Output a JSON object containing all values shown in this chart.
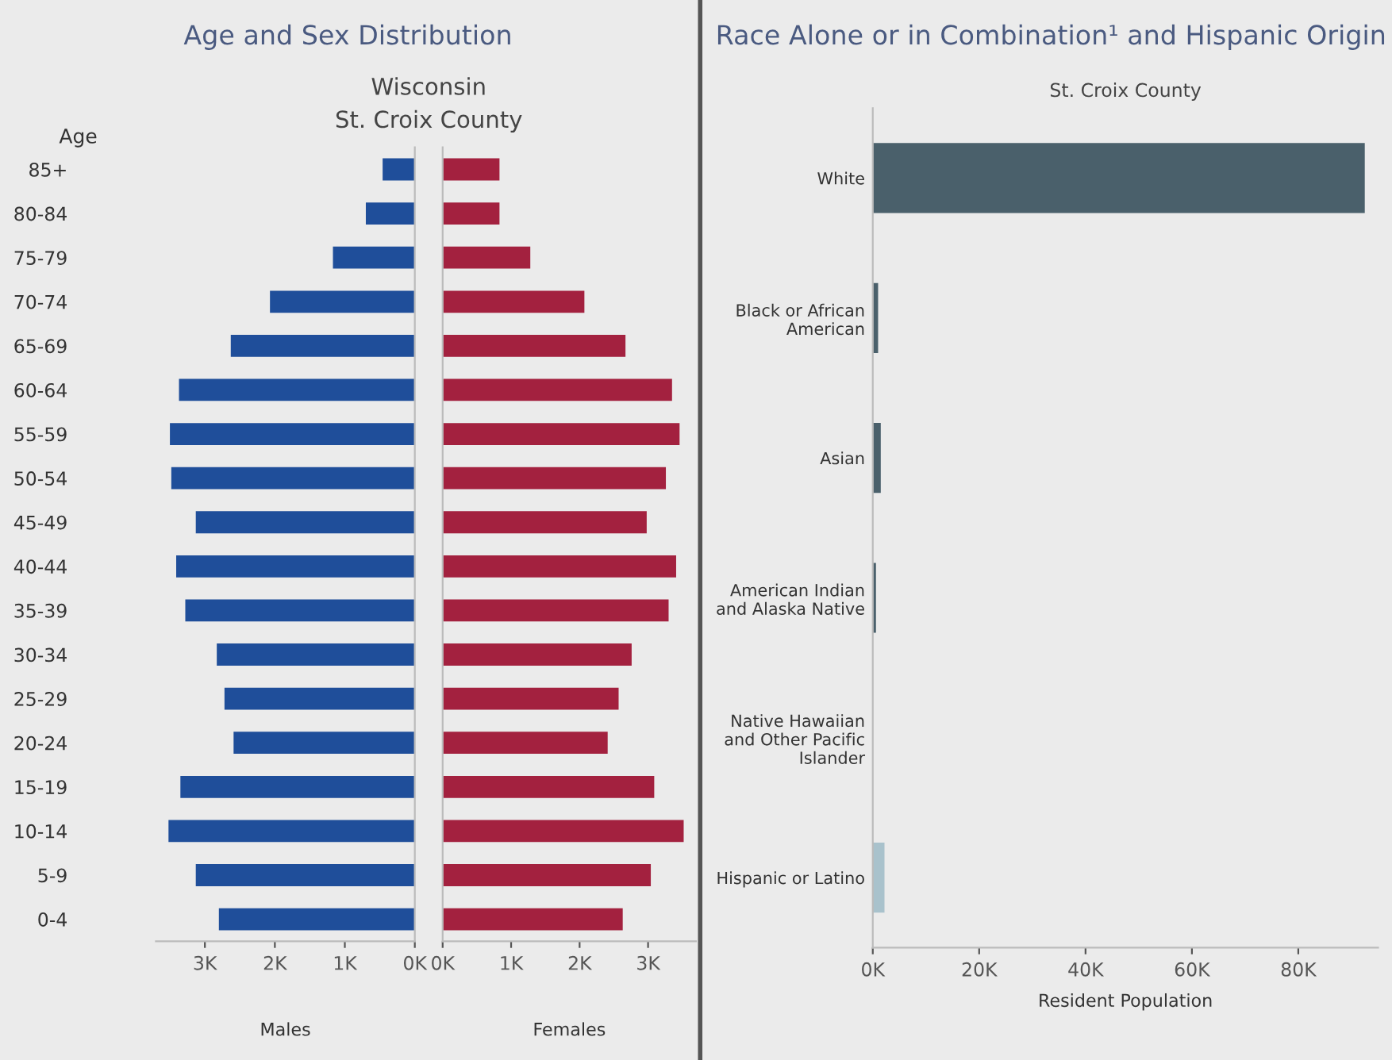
{
  "chart_data": [
    {
      "type": "bar",
      "orientation": "horizontal",
      "title": "Age and Sex Distribution",
      "subtitle": "Wisconsin\nSt. Croix County",
      "ylabel": "Age",
      "xlabel": "Males",
      "categories": [
        "85+",
        "80-84",
        "75-79",
        "70-74",
        "65-69",
        "60-64",
        "55-59",
        "50-54",
        "45-49",
        "40-44",
        "35-39",
        "30-34",
        "25-29",
        "20-24",
        "15-19",
        "10-14",
        "5-9",
        "0-4"
      ],
      "values": [
        460,
        700,
        1170,
        2070,
        2630,
        3370,
        3500,
        3480,
        3130,
        3410,
        3280,
        2830,
        2720,
        2590,
        3350,
        3520,
        3130,
        2800
      ],
      "color": "#1f4e9a",
      "xlim": [
        3700,
        0
      ],
      "xticks": [
        {
          "value": 3000,
          "label": "3K"
        },
        {
          "value": 2000,
          "label": "2K"
        },
        {
          "value": 1000,
          "label": "1K"
        },
        {
          "value": 0,
          "label": "0K"
        }
      ],
      "grid": false
    },
    {
      "type": "bar",
      "orientation": "horizontal",
      "xlabel": "Females",
      "values": [
        830,
        830,
        1280,
        2070,
        2670,
        3350,
        3460,
        3260,
        2980,
        3410,
        3300,
        2760,
        2570,
        2410,
        3090,
        3520,
        3040,
        2630
      ],
      "color": "#a3213f",
      "xlim": [
        0,
        3700
      ],
      "xticks": [
        {
          "value": 0,
          "label": "0K"
        },
        {
          "value": 1000,
          "label": "1K"
        },
        {
          "value": 2000,
          "label": "2K"
        },
        {
          "value": 3000,
          "label": "3K"
        }
      ],
      "tick_labels": "x",
      "grid": false
    },
    {
      "type": "bar",
      "orientation": "horizontal",
      "title": "Race Alone or in Combination¹ and Hispanic Origin",
      "subtitle": "St. Croix County",
      "xlabel": "Resident Population",
      "categories": [
        "White",
        "Black or African\nAmerican",
        "Asian",
        "American Indian\nand Alaska Native",
        "Native Hawaiian\nand Other Pacific\nIslander",
        "Hispanic or Latino"
      ],
      "values": [
        92500,
        1000,
        1500,
        600,
        0,
        2200
      ],
      "colors": [
        "#4a606b",
        "#4a606b",
        "#4a606b",
        "#4a606b",
        "#4a606b",
        "#a9c2cc"
      ],
      "xlim": [
        0,
        95000
      ],
      "xticks": [
        {
          "value": 0,
          "label": "0K"
        },
        {
          "value": 20000,
          "label": "20K"
        },
        {
          "value": 40000,
          "label": "40K"
        },
        {
          "value": 60000,
          "label": "60K"
        },
        {
          "value": 80000,
          "label": "80K"
        }
      ],
      "grid": false
    }
  ]
}
